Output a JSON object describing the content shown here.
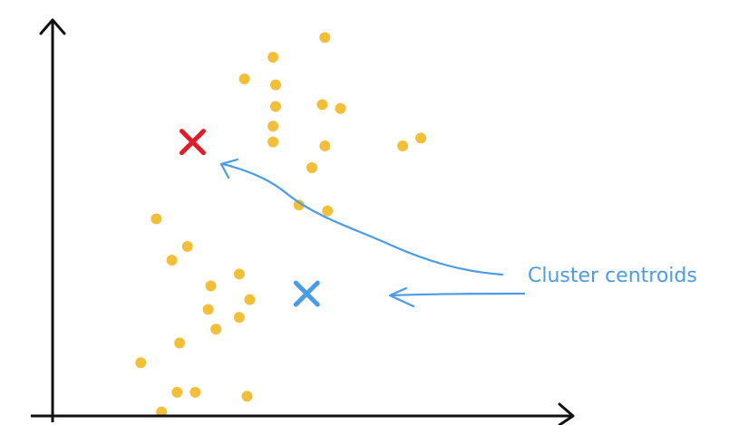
{
  "annotation": {
    "text": "Cluster centroids"
  },
  "colors": {
    "point": "#f2bf3a",
    "centroid_1": "#e01e2a",
    "centroid_2": "#4a9be8",
    "arrow": "#4a9be8",
    "axis": "#111111"
  },
  "chart_data": {
    "type": "scatter",
    "points": [
      {
        "x": 5.25,
        "y": 9.6
      },
      {
        "x": 4.25,
        "y": 9.1
      },
      {
        "x": 3.7,
        "y": 8.55
      },
      {
        "x": 4.3,
        "y": 8.4
      },
      {
        "x": 5.2,
        "y": 7.9
      },
      {
        "x": 5.55,
        "y": 7.8
      },
      {
        "x": 4.3,
        "y": 7.85
      },
      {
        "x": 4.25,
        "y": 7.35
      },
      {
        "x": 4.25,
        "y": 6.95
      },
      {
        "x": 5.25,
        "y": 6.85
      },
      {
        "x": 6.75,
        "y": 6.85
      },
      {
        "x": 7.1,
        "y": 7.05
      },
      {
        "x": 5.0,
        "y": 6.3
      },
      {
        "x": 4.75,
        "y": 5.35
      },
      {
        "x": 5.3,
        "y": 5.2
      },
      {
        "x": 2.0,
        "y": 5.0
      },
      {
        "x": 2.6,
        "y": 4.3
      },
      {
        "x": 2.3,
        "y": 3.95
      },
      {
        "x": 3.6,
        "y": 3.6
      },
      {
        "x": 3.05,
        "y": 3.3
      },
      {
        "x": 3.8,
        "y": 2.95
      },
      {
        "x": 3.0,
        "y": 2.7
      },
      {
        "x": 3.6,
        "y": 2.5
      },
      {
        "x": 3.15,
        "y": 2.2
      },
      {
        "x": 2.45,
        "y": 1.85
      },
      {
        "x": 1.7,
        "y": 1.35
      },
      {
        "x": 2.4,
        "y": 0.6
      },
      {
        "x": 2.75,
        "y": 0.6
      },
      {
        "x": 3.75,
        "y": 0.5
      },
      {
        "x": 2.1,
        "y": 0.1
      }
    ],
    "centroids": [
      {
        "x": 2.7,
        "y": 6.95
      },
      {
        "x": 4.9,
        "y": 3.1
      }
    ],
    "xlim": [
      0,
      10
    ],
    "ylim": [
      0,
      10
    ]
  }
}
